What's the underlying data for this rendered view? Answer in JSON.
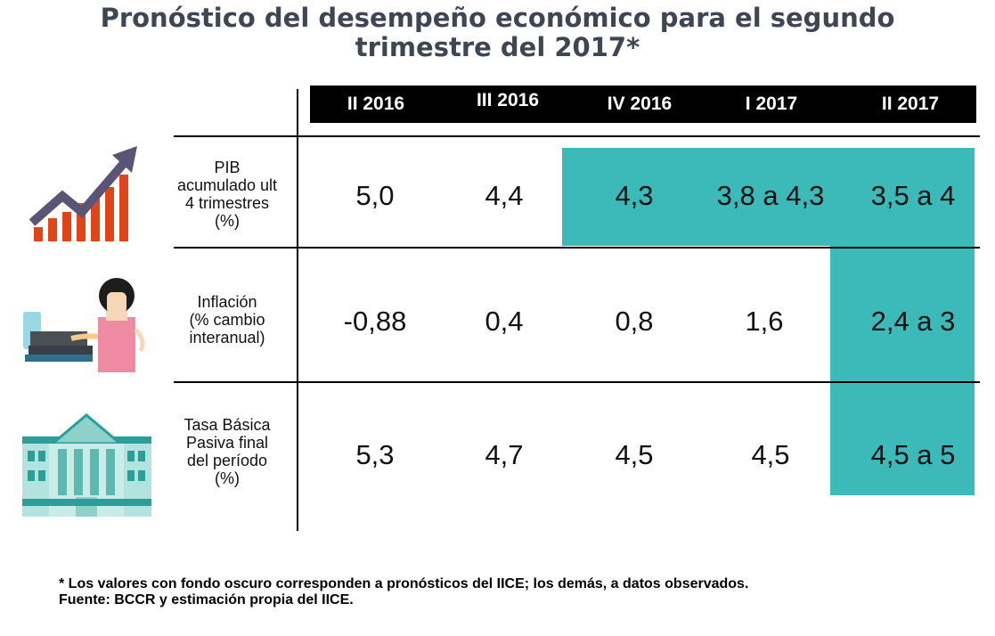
{
  "title": {
    "line1": "Pronóstico del desempeño económico para el segundo",
    "line2": "trimestre del 2017*"
  },
  "columns": [
    "II 2016",
    "III 2016",
    "IV 2016",
    "I 2017",
    "II 2017"
  ],
  "rows": [
    {
      "label_lines": [
        "PIB",
        "acumulado ult",
        "4 trimestres",
        "(%)"
      ],
      "values": [
        "5,0",
        "4,4",
        "4,3",
        "3,8 a 4,3",
        "3,5 a 4"
      ],
      "forecast": [
        false,
        false,
        true,
        true,
        true
      ],
      "icon": "growth-chart-icon"
    },
    {
      "label_lines": [
        "Inflación",
        "(% cambio",
        "interanual)"
      ],
      "values": [
        "-0,88",
        "0,4",
        "0,8",
        "1,6",
        "2,4 a 3"
      ],
      "forecast": [
        false,
        false,
        false,
        false,
        true
      ],
      "icon": "cashier-icon"
    },
    {
      "label_lines": [
        "Tasa Básica",
        "Pasiva final",
        "del período",
        "(%)"
      ],
      "values": [
        "5,3",
        "4,7",
        "4,5",
        "4,5",
        "4,5 a 5"
      ],
      "forecast": [
        false,
        false,
        false,
        false,
        true
      ],
      "icon": "bank-building-icon"
    }
  ],
  "footnote": {
    "line1": "* Los valores con fondo oscuro corresponden a pronósticos del IICE; los demás, a datos observados.",
    "line2": "Fuente: BCCR y estimación propia del IICE."
  },
  "colors": {
    "forecast_fill": "#3cb9b9",
    "header_fill": "#000000",
    "title": "#3d4652"
  },
  "chart_data": {
    "type": "table",
    "title": "Pronóstico del desempeño económico para el segundo trimestre del 2017*",
    "columns": [
      "II 2016",
      "III 2016",
      "IV 2016",
      "I 2017",
      "II 2017"
    ],
    "rows": [
      {
        "name": "PIB acumulado ult 4 trimestres (%)",
        "values": [
          "5,0",
          "4,4",
          "4,3",
          "3,8 a 4,3",
          "3,5 a 4"
        ]
      },
      {
        "name": "Inflación (% cambio interanual)",
        "values": [
          "-0,88",
          "0,4",
          "0,8",
          "1,6",
          "2,4 a 3"
        ]
      },
      {
        "name": "Tasa Básica Pasiva final del período (%)",
        "values": [
          "5,3",
          "4,7",
          "4,5",
          "4,5",
          "4,5 a 5"
        ]
      }
    ]
  }
}
